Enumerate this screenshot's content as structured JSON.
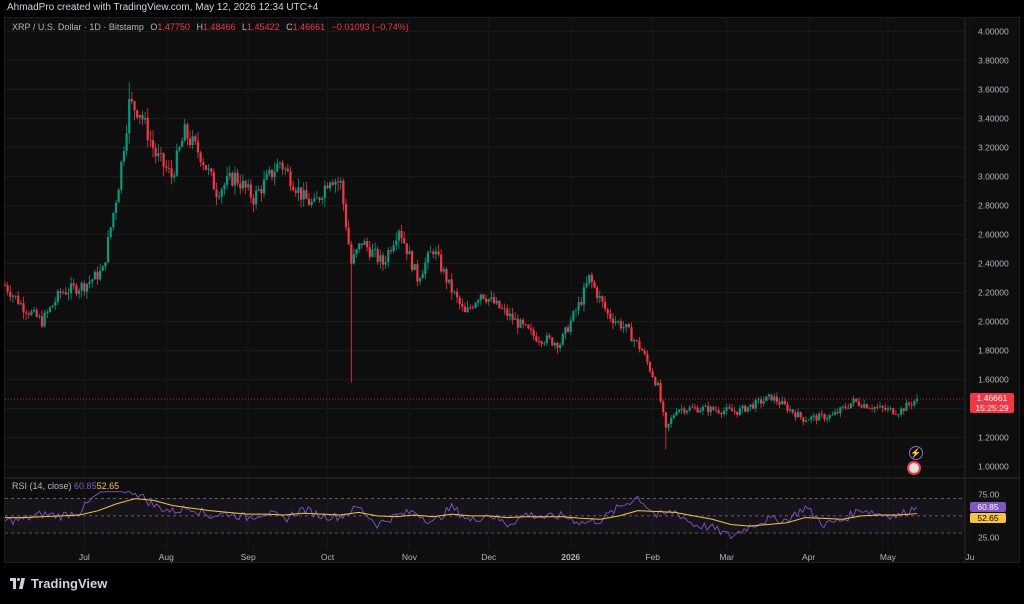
{
  "header": {
    "creator_line": "AhmadPro created with TradingView.com, May 12, 2026 12:34 UTC+4"
  },
  "legend": {
    "symbol": "XRP / U.S. Dollar · 1D · Bitstamp",
    "o_label": "O",
    "o_value": "1.47750",
    "h_label": "H",
    "h_value": "1.48466",
    "l_label": "L",
    "l_value": "1.45422",
    "c_label": "C",
    "c_value": "1.46661",
    "change": "−0.01093 (−0.74%)"
  },
  "price_tag": {
    "price": "1.46661",
    "countdown": "15:25:29"
  },
  "rsi_legend": {
    "label": "RSI (14, close)",
    "rsi_value": "60.85",
    "ma_value": "52.65"
  },
  "rsi_tags": {
    "rsi": "60.85",
    "ma": "52.65"
  },
  "footer": {
    "brand": "TradingView"
  },
  "icons": {
    "flash": "flash-icon",
    "flag": "us-flag-icon"
  },
  "colors": {
    "up": "#089981",
    "down": "#f23645",
    "rsi_line": "#7e57c2",
    "rsi_ma": "#f5c542",
    "background": "#0e0e0e"
  },
  "chart_data": [
    {
      "type": "candlestick",
      "title": "",
      "ylim": [
        0.95,
        4.05
      ],
      "y_ticks": [
        "1.00000",
        "1.20000",
        "1.40000",
        "1.60000",
        "1.80000",
        "2.00000",
        "2.20000",
        "2.40000",
        "2.60000",
        "2.80000",
        "3.00000",
        "3.20000",
        "3.40000",
        "3.60000",
        "3.80000",
        "4.00000"
      ],
      "x_ticks": [
        "Jul",
        "Aug",
        "Sep",
        "Oct",
        "Nov",
        "Dec",
        "2026",
        "Feb",
        "Mar",
        "Apr",
        "May",
        "Ju"
      ],
      "last_price": 1.46661,
      "close_path": [
        {
          "date": "2025-06-01",
          "close": 2.25
        },
        {
          "date": "2025-06-08",
          "close": 2.1
        },
        {
          "date": "2025-06-15",
          "close": 2.0
        },
        {
          "date": "2025-06-22",
          "close": 2.2
        },
        {
          "date": "2025-07-01",
          "close": 2.25
        },
        {
          "date": "2025-07-08",
          "close": 2.35
        },
        {
          "date": "2025-07-14",
          "close": 2.95
        },
        {
          "date": "2025-07-18",
          "close": 3.5
        },
        {
          "date": "2025-07-22",
          "close": 3.45
        },
        {
          "date": "2025-07-28",
          "close": 3.15
        },
        {
          "date": "2025-08-03",
          "close": 3.0
        },
        {
          "date": "2025-08-08",
          "close": 3.3
        },
        {
          "date": "2025-08-14",
          "close": 3.15
        },
        {
          "date": "2025-08-20",
          "close": 2.9
        },
        {
          "date": "2025-08-27",
          "close": 3.0
        },
        {
          "date": "2025-09-03",
          "close": 2.85
        },
        {
          "date": "2025-09-13",
          "close": 3.1
        },
        {
          "date": "2025-09-22",
          "close": 2.85
        },
        {
          "date": "2025-09-26",
          "close": 2.8
        },
        {
          "date": "2025-10-02",
          "close": 3.0
        },
        {
          "date": "2025-10-06",
          "close": 2.95
        },
        {
          "date": "2025-10-10",
          "close": 2.4
        },
        {
          "date": "2025-10-14",
          "close": 2.55
        },
        {
          "date": "2025-10-22",
          "close": 2.4
        },
        {
          "date": "2025-10-28",
          "close": 2.65
        },
        {
          "date": "2025-11-04",
          "close": 2.3
        },
        {
          "date": "2025-11-10",
          "close": 2.5
        },
        {
          "date": "2025-11-16",
          "close": 2.25
        },
        {
          "date": "2025-11-22",
          "close": 2.05
        },
        {
          "date": "2025-11-28",
          "close": 2.2
        },
        {
          "date": "2025-12-08",
          "close": 2.05
        },
        {
          "date": "2025-12-18",
          "close": 1.9
        },
        {
          "date": "2025-12-28",
          "close": 1.85
        },
        {
          "date": "2026-01-05",
          "close": 2.15
        },
        {
          "date": "2026-01-08",
          "close": 2.3
        },
        {
          "date": "2026-01-15",
          "close": 2.05
        },
        {
          "date": "2026-01-22",
          "close": 1.95
        },
        {
          "date": "2026-01-28",
          "close": 1.8
        },
        {
          "date": "2026-02-03",
          "close": 1.55
        },
        {
          "date": "2026-02-06",
          "close": 1.25
        },
        {
          "date": "2026-02-10",
          "close": 1.4
        },
        {
          "date": "2026-02-20",
          "close": 1.4
        },
        {
          "date": "2026-03-05",
          "close": 1.38
        },
        {
          "date": "2026-03-18",
          "close": 1.48
        },
        {
          "date": "2026-03-30",
          "close": 1.33
        },
        {
          "date": "2026-04-10",
          "close": 1.35
        },
        {
          "date": "2026-04-18",
          "close": 1.45
        },
        {
          "date": "2026-04-28",
          "close": 1.4
        },
        {
          "date": "2026-05-05",
          "close": 1.38
        },
        {
          "date": "2026-05-12",
          "close": 1.46661
        }
      ]
    },
    {
      "type": "line",
      "title": "",
      "ylim": [
        15,
        80
      ],
      "y_ticks": [
        "75.00",
        "25.00"
      ],
      "bands": [
        70,
        50,
        30
      ],
      "series": [
        {
          "values": [
            44,
            46,
            52,
            50,
            55,
            75,
            82,
            78,
            62,
            55,
            60,
            50,
            53,
            48,
            54,
            46,
            58,
            50,
            49,
            60,
            40,
            50,
            55,
            42,
            60,
            44,
            52,
            40,
            52,
            48,
            50,
            42,
            45,
            60,
            72,
            50,
            55,
            40,
            36,
            26,
            38,
            46,
            45,
            60,
            40,
            45,
            58,
            52,
            50,
            60.85
          ]
        },
        {
          "values": [
            48,
            48,
            49,
            50,
            51,
            56,
            64,
            70,
            68,
            62,
            59,
            56,
            54,
            52,
            52,
            51,
            53,
            52,
            51,
            54,
            50,
            49,
            51,
            49,
            52,
            50,
            50,
            48,
            49,
            49,
            49,
            47,
            46,
            50,
            56,
            55,
            54,
            50,
            46,
            40,
            38,
            40,
            42,
            48,
            47,
            46,
            50,
            51,
            51,
            52.65
          ]
        }
      ]
    }
  ]
}
